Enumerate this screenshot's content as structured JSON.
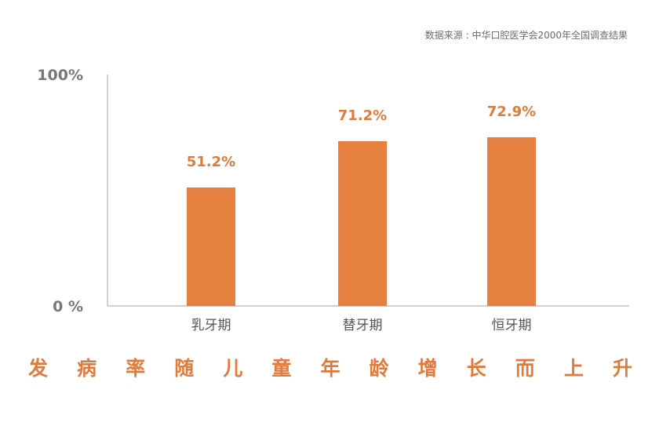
{
  "source": "数据来源 : 中华口腔医学会2000年全国调查结果",
  "caption": "发病率随儿童年龄增长而上升",
  "colors": {
    "bar": "#e5803f",
    "label": "#e07b3c",
    "axis": "#b5b5b5"
  },
  "chart_data": {
    "type": "bar",
    "title": "",
    "xlabel": "",
    "ylabel": "",
    "categories": [
      "乳牙期",
      "替牙期",
      "恒牙期"
    ],
    "values": [
      51.2,
      71.2,
      72.9
    ],
    "data_labels": [
      "51.2%",
      "71.2%",
      "72.9%"
    ],
    "ylim": [
      0,
      100
    ],
    "y_ticks": [
      {
        "value": 0,
        "label": "0 %"
      },
      {
        "value": 100,
        "label": "100%"
      }
    ],
    "grid": false,
    "legend": "none"
  }
}
